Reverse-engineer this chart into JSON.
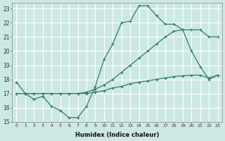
{
  "xlabel": "Humidex (Indice chaleur)",
  "xlim": [
    -0.5,
    23.5
  ],
  "ylim": [
    15,
    23.4
  ],
  "yticks": [
    15,
    16,
    17,
    18,
    19,
    20,
    21,
    22,
    23
  ],
  "xticks": [
    0,
    1,
    2,
    3,
    4,
    5,
    6,
    7,
    8,
    9,
    10,
    11,
    12,
    13,
    14,
    15,
    16,
    17,
    18,
    19,
    20,
    21,
    22,
    23
  ],
  "background_color": "#cce8e5",
  "grid_color": "#ffffff",
  "line_color": "#2e7d6e",
  "lines": [
    {
      "x": [
        0,
        1,
        2,
        3,
        4,
        5,
        6,
        7,
        8,
        9,
        10,
        11,
        12,
        13,
        14,
        15,
        16,
        17,
        18,
        19,
        20,
        21,
        22,
        23
      ],
      "y": [
        17.8,
        17.0,
        16.6,
        16.8,
        16.1,
        15.8,
        15.3,
        15.3,
        16.1,
        17.5,
        19.4,
        20.5,
        22.0,
        22.1,
        23.2,
        23.2,
        22.5,
        21.9,
        21.9,
        21.5,
        20.0,
        18.9,
        18.0,
        18.3
      ]
    },
    {
      "x": [
        0,
        1,
        2,
        3,
        4,
        5,
        6,
        7,
        8,
        9,
        10,
        11,
        12,
        13,
        14,
        15,
        16,
        17,
        18,
        19,
        20,
        21,
        22,
        23
      ],
      "y": [
        17.0,
        17.0,
        17.0,
        17.0,
        17.0,
        17.0,
        17.0,
        17.0,
        17.1,
        17.3,
        17.6,
        18.0,
        18.5,
        19.0,
        19.5,
        20.0,
        20.5,
        21.0,
        21.4,
        21.5,
        21.5,
        21.5,
        21.0,
        21.0
      ]
    },
    {
      "x": [
        0,
        1,
        2,
        3,
        4,
        5,
        6,
        7,
        8,
        9,
        10,
        11,
        12,
        13,
        14,
        15,
        16,
        17,
        18,
        19,
        20,
        21,
        22,
        23
      ],
      "y": [
        17.0,
        17.0,
        17.0,
        17.0,
        17.0,
        17.0,
        17.0,
        17.0,
        17.0,
        17.1,
        17.2,
        17.4,
        17.5,
        17.7,
        17.8,
        17.9,
        18.0,
        18.1,
        18.2,
        18.25,
        18.3,
        18.3,
        18.1,
        18.3
      ]
    }
  ]
}
